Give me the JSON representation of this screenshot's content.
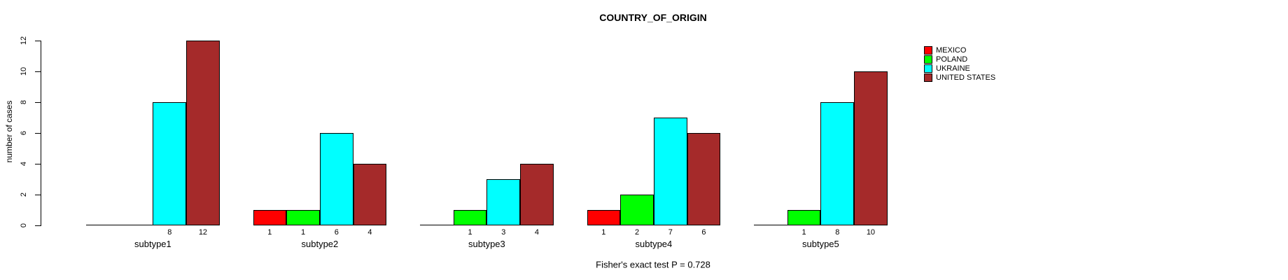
{
  "chart_data": {
    "type": "bar",
    "title": "COUNTRY_OF_ORIGIN",
    "xlabel": "",
    "ylabel": "number of cases",
    "ylim": [
      0,
      12
    ],
    "yticks": [
      0,
      2,
      4,
      6,
      8,
      10,
      12
    ],
    "categories": [
      "subtype1",
      "subtype2",
      "subtype3",
      "subtype4",
      "subtype5"
    ],
    "series": [
      {
        "name": "MEXICO",
        "color": "#FF0000",
        "values": [
          0,
          1,
          0,
          1,
          0
        ]
      },
      {
        "name": "POLAND",
        "color": "#00FF00",
        "values": [
          0,
          1,
          1,
          2,
          1
        ]
      },
      {
        "name": "UKRAINE",
        "color": "#00FFFF",
        "values": [
          8,
          6,
          3,
          7,
          8
        ]
      },
      {
        "name": "UNITED STATES",
        "color": "#A52A2A",
        "values": [
          12,
          4,
          4,
          6,
          10
        ]
      }
    ],
    "bar_value_labels": "shown under each bar for nonzero values only",
    "legend_position": "right",
    "grid": false,
    "annotation": "Fisher's exact test P = 0.728"
  }
}
